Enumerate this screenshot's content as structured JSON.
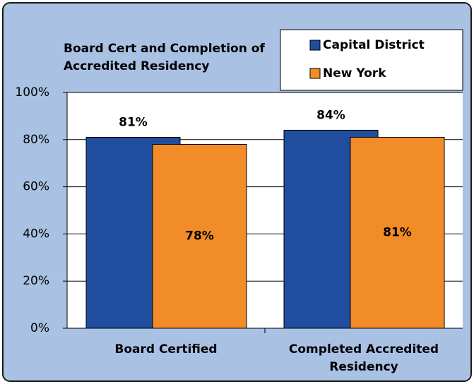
{
  "chart_data": {
    "type": "bar",
    "title": "Board Cert and Completion of Accredited Residency",
    "categories": [
      "Board Certified",
      "Completed Accredited Residency"
    ],
    "series": [
      {
        "name": "Capital District",
        "color": "#1f4e9e",
        "values": [
          81,
          84
        ],
        "value_labels": [
          "81%",
          "84%"
        ]
      },
      {
        "name": "New York",
        "color": "#f28c28",
        "values": [
          78,
          81
        ],
        "value_labels": [
          "78%",
          "81%"
        ]
      }
    ],
    "ylim": [
      0,
      100
    ],
    "yticks": [
      {
        "value": 0,
        "label": "0%"
      },
      {
        "value": 20,
        "label": "20%"
      },
      {
        "value": 40,
        "label": "40%"
      },
      {
        "value": 60,
        "label": "60%"
      },
      {
        "value": 80,
        "label": "80%"
      },
      {
        "value": 100,
        "label": "100%"
      }
    ],
    "grid": true,
    "legend": "top-right"
  }
}
